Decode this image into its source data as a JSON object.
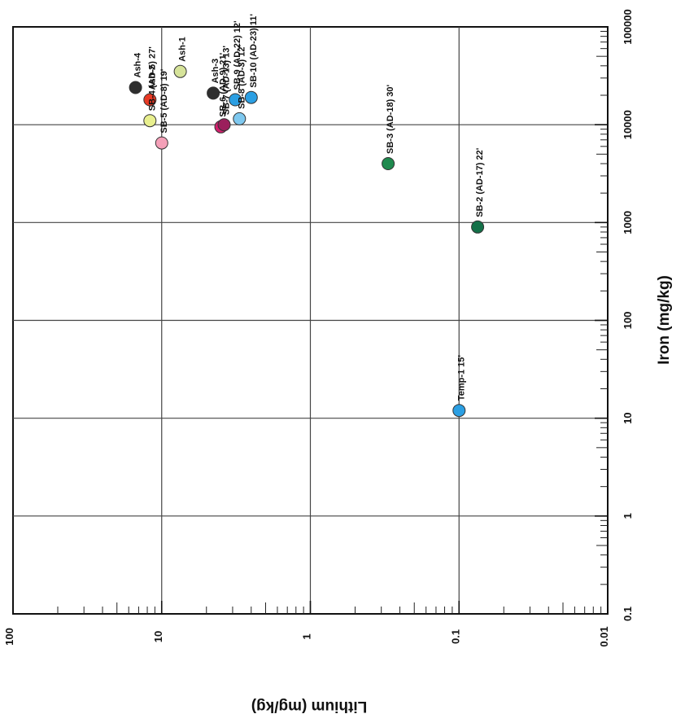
{
  "chart_data": {
    "type": "scatter",
    "x_axis": {
      "label": "Iron (mg/kg)",
      "scale": "log",
      "range": [
        0.1,
        100000
      ],
      "tick_labels": [
        "0.1",
        "1",
        "10",
        "100",
        "1000",
        "10000",
        "100000"
      ]
    },
    "y_axis": {
      "label": "Lithium (mg/kg)",
      "scale": "log",
      "range": [
        0.01,
        100
      ],
      "tick_labels": [
        "100",
        "10",
        "1",
        "0.1",
        "0.01"
      ]
    },
    "grid": true,
    "points": [
      {
        "label": "Ash-4",
        "x": 24000,
        "y": 15,
        "color": "#2e2e2e"
      },
      {
        "label": "Ash-2",
        "x": 18000,
        "y": 12,
        "color": "#e83a25"
      },
      {
        "label": "Ash-1",
        "x": 35000,
        "y": 7.5,
        "color": "#d6e39a"
      },
      {
        "label": "Ash-3",
        "x": 21000,
        "y": 4.5,
        "color": "#2e2e2e"
      },
      {
        "label": "SB-9 (AD-22) 12'",
        "x": 18000,
        "y": 3.2,
        "color": "#2b9fe3"
      },
      {
        "label": "SB-10 (AD-23) 11'",
        "x": 19000,
        "y": 2.5,
        "color": "#2b9fe3"
      },
      {
        "label": "SB-4 (AD-5) 27'",
        "x": 11000,
        "y": 12,
        "color": "#e8ef8e"
      },
      {
        "label": "SB-5 (AD-8) 19'",
        "x": 6500,
        "y": 10,
        "color": "#f4a0b8"
      },
      {
        "label": "SB-6 (AD-9) 21'",
        "x": 9500,
        "y": 4.0,
        "color": "#d4206e"
      },
      {
        "label": "SB-7 (AD-13) 13'",
        "x": 10000,
        "y": 3.8,
        "color": "#9b1f5c"
      },
      {
        "label": "SB-8 (AD-3) 12'",
        "x": 11500,
        "y": 3.0,
        "color": "#7ec8ef"
      },
      {
        "label": "SB-3 (AD-18) 30'",
        "x": 4000,
        "y": 0.3,
        "color": "#1f8a4e"
      },
      {
        "label": "SB-2 (AD-17) 22'",
        "x": 900,
        "y": 0.075,
        "color": "#137048"
      },
      {
        "label": "Temp-1 15'",
        "x": 12,
        "y": 0.1,
        "color": "#2b9fe3"
      }
    ]
  }
}
